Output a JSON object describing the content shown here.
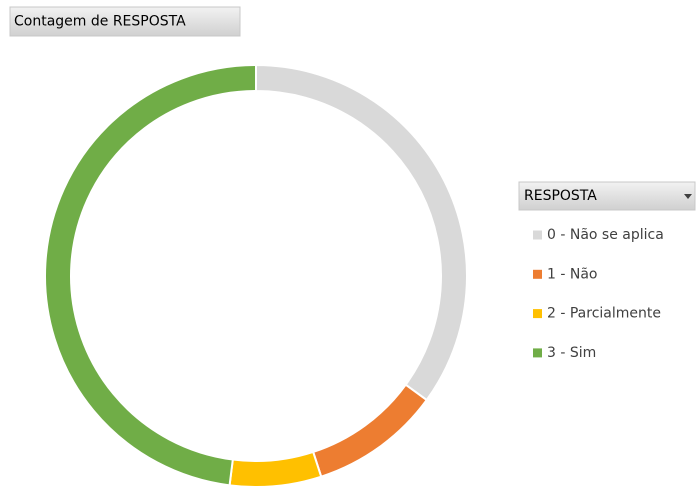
{
  "chart_data": {
    "type": "donut",
    "title": "Contagem de RESPOSTA",
    "legend_title": "RESPOSTA",
    "categories": [
      "0 - Não se aplica",
      "1 - Não",
      "2 - Parcialmente",
      "3 - Sim"
    ],
    "values": [
      35,
      10,
      7,
      48
    ],
    "colors": [
      "#d9d9d9",
      "#ed7d31",
      "#ffc000",
      "#70ad47"
    ],
    "legend": "right"
  }
}
